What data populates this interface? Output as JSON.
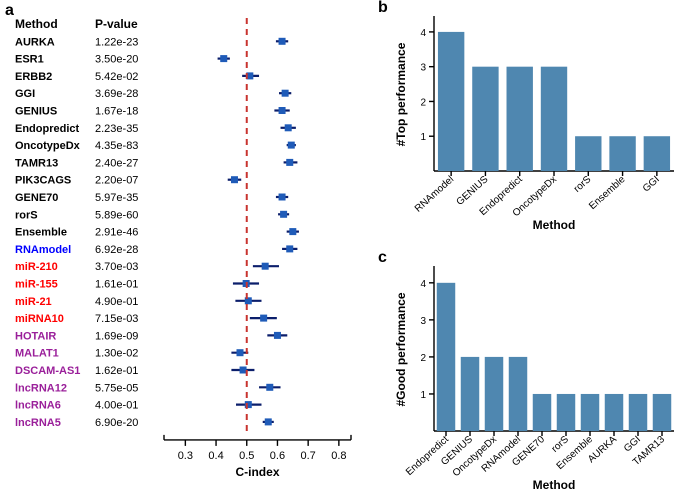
{
  "colors": {
    "bg": "#ffffff",
    "axis": "#000000",
    "text": "#000000",
    "blue": "#0000ff",
    "red": "#ff0000",
    "purple": "#9a1f9a",
    "forest_marker": "#1f5bb8",
    "forest_line": "#0b1e6b",
    "bar": "#4f87b0",
    "dashed": "#c8342f"
  },
  "panel_a": {
    "label": "a",
    "header_method": "Method",
    "header_pvalue": "P-value",
    "xlabel": "C-index",
    "xlim": [
      0.25,
      0.82
    ],
    "xticks": [
      0.3,
      0.4,
      0.5,
      0.6,
      0.7,
      0.8
    ],
    "ref_line": 0.5,
    "row_fontsize": 11,
    "header_fontsize": 12,
    "axis_fontsize": 12,
    "rows": [
      {
        "name": "AURKA",
        "p": "1.22e-23",
        "c": 0.615,
        "lo": 0.595,
        "hi": 0.635,
        "color": "text"
      },
      {
        "name": "ESR1",
        "p": "3.50e-20",
        "c": 0.425,
        "lo": 0.405,
        "hi": 0.445,
        "color": "text"
      },
      {
        "name": "ERBB2",
        "p": "5.42e-02",
        "c": 0.51,
        "lo": 0.485,
        "hi": 0.54,
        "color": "text"
      },
      {
        "name": "GGI",
        "p": "3.69e-28",
        "c": 0.625,
        "lo": 0.605,
        "hi": 0.645,
        "color": "text"
      },
      {
        "name": "GENIUS",
        "p": "1.67e-18",
        "c": 0.615,
        "lo": 0.59,
        "hi": 0.64,
        "color": "text"
      },
      {
        "name": "Endopredict",
        "p": "2.23e-35",
        "c": 0.635,
        "lo": 0.61,
        "hi": 0.66,
        "color": "text"
      },
      {
        "name": "OncotypeDx",
        "p": "4.35e-83",
        "c": 0.645,
        "lo": 0.63,
        "hi": 0.66,
        "color": "text"
      },
      {
        "name": "TAMR13",
        "p": "2.40e-27",
        "c": 0.64,
        "lo": 0.62,
        "hi": 0.665,
        "color": "text"
      },
      {
        "name": "PIK3CAGS",
        "p": "2.20e-07",
        "c": 0.46,
        "lo": 0.438,
        "hi": 0.482,
        "color": "text"
      },
      {
        "name": "GENE70",
        "p": "5.97e-35",
        "c": 0.615,
        "lo": 0.595,
        "hi": 0.635,
        "color": "text"
      },
      {
        "name": "rorS",
        "p": "5.89e-60",
        "c": 0.62,
        "lo": 0.602,
        "hi": 0.638,
        "color": "text"
      },
      {
        "name": "Ensemble",
        "p": "2.91e-46",
        "c": 0.65,
        "lo": 0.63,
        "hi": 0.67,
        "color": "text"
      },
      {
        "name": "RNAmodel",
        "p": "6.92e-28",
        "c": 0.64,
        "lo": 0.615,
        "hi": 0.665,
        "color": "blue"
      },
      {
        "name": "miR-210",
        "p": "3.70e-03",
        "c": 0.56,
        "lo": 0.52,
        "hi": 0.605,
        "color": "red"
      },
      {
        "name": "miR-155",
        "p": "1.61e-01",
        "c": 0.498,
        "lo": 0.455,
        "hi": 0.54,
        "color": "red"
      },
      {
        "name": "miR-21",
        "p": "4.90e-01",
        "c": 0.505,
        "lo": 0.463,
        "hi": 0.548,
        "color": "red"
      },
      {
        "name": "miRNA10",
        "p": "7.15e-03",
        "c": 0.555,
        "lo": 0.51,
        "hi": 0.598,
        "color": "red"
      },
      {
        "name": "HOTAIR",
        "p": "1.69e-09",
        "c": 0.6,
        "lo": 0.567,
        "hi": 0.632,
        "color": "purple"
      },
      {
        "name": "MALAT1",
        "p": "1.30e-02",
        "c": 0.478,
        "lo": 0.45,
        "hi": 0.505,
        "color": "purple"
      },
      {
        "name": "DSCAM-AS1",
        "p": "1.62e-01",
        "c": 0.488,
        "lo": 0.45,
        "hi": 0.525,
        "color": "purple"
      },
      {
        "name": "lncRNA12",
        "p": "5.75e-05",
        "c": 0.575,
        "lo": 0.54,
        "hi": 0.61,
        "color": "purple"
      },
      {
        "name": "lncRNA6",
        "p": "4.00e-01",
        "c": 0.505,
        "lo": 0.465,
        "hi": 0.548,
        "color": "purple"
      },
      {
        "name": "lncRNA5",
        "p": "6.90e-20",
        "c": 0.57,
        "lo": 0.552,
        "hi": 0.588,
        "color": "purple"
      }
    ],
    "marker_size": 7,
    "line_width": 2.2
  },
  "panel_b": {
    "label": "b",
    "xlabel": "Method",
    "ylabel": "#Top performance",
    "ylim": [
      0,
      4.4
    ],
    "yticks": [
      1,
      2,
      3,
      4
    ],
    "bars": [
      {
        "name": "RNAmodel",
        "v": 4
      },
      {
        "name": "GENIUS",
        "v": 3
      },
      {
        "name": "Endopredict",
        "v": 3
      },
      {
        "name": "OncotypeDx",
        "v": 3
      },
      {
        "name": "rorS",
        "v": 1
      },
      {
        "name": "Ensemble",
        "v": 1
      },
      {
        "name": "GGI",
        "v": 1
      }
    ],
    "bar_width": 0.77,
    "axis_fontsize": 12,
    "tick_fontsize": 10
  },
  "panel_c": {
    "label": "c",
    "xlabel": "Method",
    "ylabel": "#Good performance",
    "ylim": [
      0,
      4.4
    ],
    "yticks": [
      1,
      2,
      3,
      4
    ],
    "bars": [
      {
        "name": "Endopredict",
        "v": 4
      },
      {
        "name": "GENIUS",
        "v": 2
      },
      {
        "name": "OncotypeDx",
        "v": 2
      },
      {
        "name": "RNAmodel",
        "v": 2
      },
      {
        "name": "GENE70",
        "v": 1
      },
      {
        "name": "rorS",
        "v": 1
      },
      {
        "name": "Ensemble",
        "v": 1
      },
      {
        "name": "AURKA",
        "v": 1
      },
      {
        "name": "GGI",
        "v": 1
      },
      {
        "name": "TAMR13",
        "v": 1
      }
    ],
    "bar_width": 0.77,
    "axis_fontsize": 12,
    "tick_fontsize": 10
  }
}
